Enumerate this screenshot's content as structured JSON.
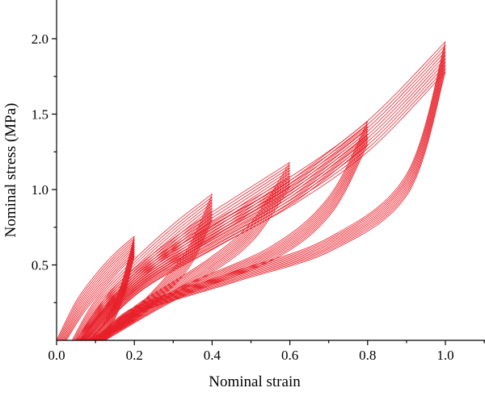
{
  "chart_data": {
    "type": "line",
    "title": "",
    "xlabel": "Nominal strain",
    "ylabel": "Nominal stress (MPa)",
    "xlim": [
      0.0,
      1.1
    ],
    "ylim": [
      0.0,
      2.2
    ],
    "xticks": [
      0.0,
      0.2,
      0.4,
      0.6,
      0.8,
      1.0
    ],
    "xtick_labels": [
      "0.0",
      "0.2",
      "0.4",
      "0.6",
      "0.8",
      "1.0"
    ],
    "yticks": [
      0.5,
      1.0,
      1.5,
      2.0
    ],
    "ytick_labels": [
      "0.5",
      "1.0",
      "1.5",
      "2.0"
    ],
    "grid": false,
    "legend": "none",
    "color": "#e8202a",
    "series": [
      {
        "max_strain": 0.2,
        "cycles": 10,
        "first_peak_stress": 0.69,
        "last_peak_stress": 0.56,
        "loading": [
          [
            0.0,
            0.0
          ],
          [
            0.05,
            0.29
          ],
          [
            0.1,
            0.47
          ],
          [
            0.15,
            0.6
          ],
          [
            0.2,
            0.69
          ]
        ],
        "unloading": [
          [
            0.2,
            0.69
          ],
          [
            0.17,
            0.4
          ],
          [
            0.14,
            0.2
          ],
          [
            0.11,
            0.07
          ],
          [
            0.08,
            0.0
          ]
        ]
      },
      {
        "max_strain": 0.4,
        "cycles": 10,
        "first_peak_stress": 0.97,
        "last_peak_stress": 0.8,
        "loading": [
          [
            0.04,
            0.0
          ],
          [
            0.1,
            0.3
          ],
          [
            0.2,
            0.58
          ],
          [
            0.3,
            0.8
          ],
          [
            0.4,
            0.97
          ]
        ],
        "unloading": [
          [
            0.4,
            0.97
          ],
          [
            0.34,
            0.62
          ],
          [
            0.26,
            0.36
          ],
          [
            0.17,
            0.14
          ],
          [
            0.08,
            0.0
          ]
        ]
      },
      {
        "max_strain": 0.6,
        "cycles": 10,
        "first_peak_stress": 1.18,
        "last_peak_stress": 1.02,
        "loading": [
          [
            0.05,
            0.0
          ],
          [
            0.15,
            0.4
          ],
          [
            0.3,
            0.73
          ],
          [
            0.45,
            0.97
          ],
          [
            0.6,
            1.18
          ]
        ],
        "unloading": [
          [
            0.6,
            1.18
          ],
          [
            0.5,
            0.78
          ],
          [
            0.38,
            0.52
          ],
          [
            0.22,
            0.26
          ],
          [
            0.09,
            0.0
          ]
        ]
      },
      {
        "max_strain": 0.8,
        "cycles": 10,
        "first_peak_stress": 1.45,
        "last_peak_stress": 1.3,
        "loading": [
          [
            0.06,
            0.0
          ],
          [
            0.2,
            0.48
          ],
          [
            0.4,
            0.82
          ],
          [
            0.6,
            1.1
          ],
          [
            0.8,
            1.45
          ]
        ],
        "unloading": [
          [
            0.8,
            1.45
          ],
          [
            0.7,
            0.95
          ],
          [
            0.55,
            0.62
          ],
          [
            0.3,
            0.33
          ],
          [
            0.1,
            0.0
          ]
        ]
      },
      {
        "max_strain": 1.0,
        "cycles": 10,
        "first_peak_stress": 1.98,
        "last_peak_stress": 1.78,
        "loading": [
          [
            0.06,
            0.0
          ],
          [
            0.2,
            0.5
          ],
          [
            0.4,
            0.86
          ],
          [
            0.6,
            1.15
          ],
          [
            0.8,
            1.5
          ],
          [
            1.0,
            1.98
          ]
        ],
        "unloading": [
          [
            1.0,
            1.98
          ],
          [
            0.9,
            1.1
          ],
          [
            0.7,
            0.68
          ],
          [
            0.45,
            0.45
          ],
          [
            0.2,
            0.22
          ],
          [
            0.1,
            0.0
          ]
        ]
      }
    ]
  }
}
